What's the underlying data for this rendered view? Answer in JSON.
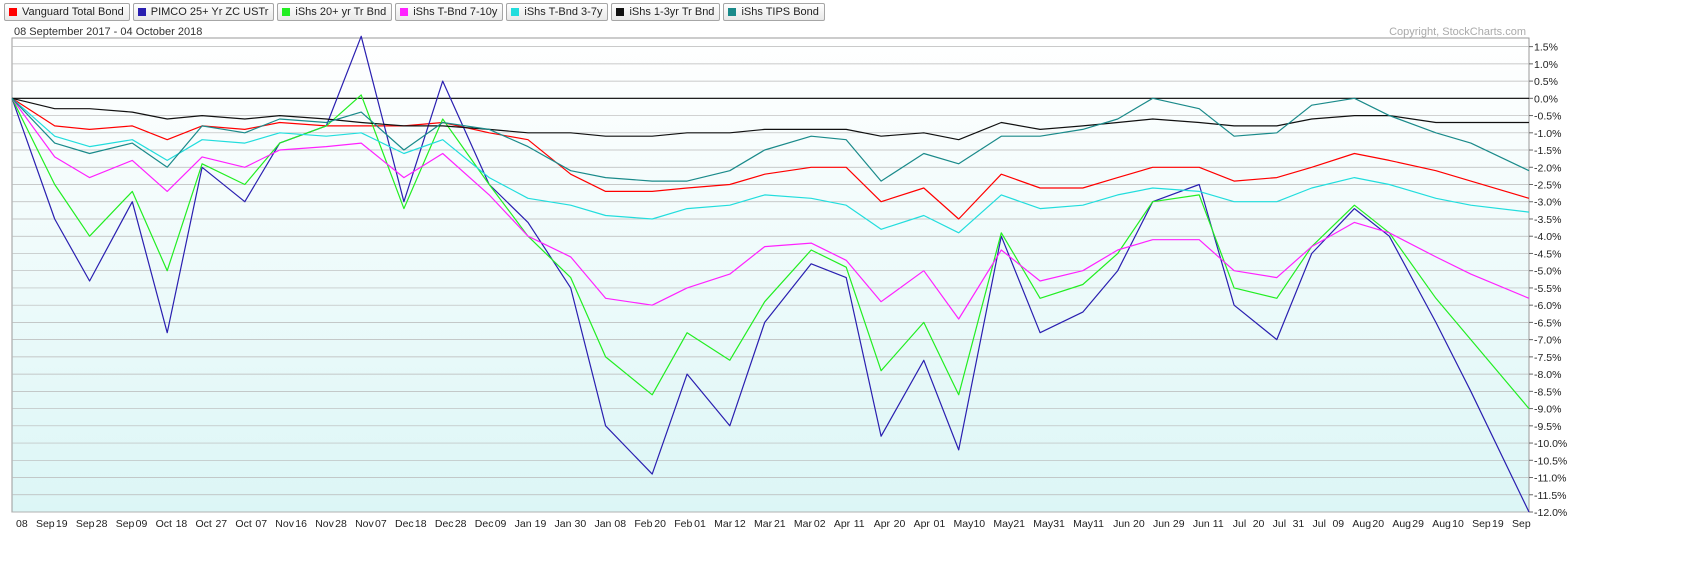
{
  "legend": {
    "items": [
      {
        "label": "Vanguard Total Bond",
        "color": "#ff0000"
      },
      {
        "label": "PIMCO 25+ Yr ZC USTr",
        "color": "#2a1fb0"
      },
      {
        "label": "iShs 20+ yr Tr Bnd",
        "color": "#22ee22"
      },
      {
        "label": "iShs T-Bnd 7-10y",
        "color": "#ff22ff"
      },
      {
        "label": "iShs T-Bnd 3-7y",
        "color": "#22dddd"
      },
      {
        "label": "iShs 1-3yr Tr Bnd",
        "color": "#111111"
      },
      {
        "label": "iShs TIPS Bond",
        "color": "#1a8a8a"
      }
    ]
  },
  "chart_data": {
    "type": "line",
    "date_range_label": "08 September 2017 - 04 October 2018",
    "copyright": "Copyright, StockCharts.com",
    "ylim": [
      -12,
      1.75
    ],
    "y_ticks": [
      1.5,
      1.0,
      0.5,
      0.0,
      -0.5,
      -1.0,
      -1.5,
      -2.0,
      -2.5,
      -3.0,
      -3.5,
      -4.0,
      -4.5,
      -5.0,
      -5.5,
      -6.0,
      -6.5,
      -7.0,
      -7.5,
      -8.0,
      -8.5,
      -9.0,
      -9.5,
      -10.0,
      -10.5,
      -11.0,
      -11.5,
      -12.0
    ],
    "y_tick_labels": [
      "1.5%",
      "1.0%",
      "0.5%",
      "0.0%",
      "-0.5%",
      "-1.0%",
      "-1.5%",
      "-2.0%",
      "-2.5%",
      "-3.0%",
      "-3.5%",
      "-4.0%",
      "-4.5%",
      "-5.0%",
      "-5.5%",
      "-6.0%",
      "-6.5%",
      "-7.0%",
      "-7.5%",
      "-8.0%",
      "-8.5%",
      "-9.0%",
      "-9.5%",
      "-10.0%",
      "-10.5%",
      "-11.0%",
      "-11.5%",
      "-12.0%"
    ],
    "x_tick_labels": [
      "08",
      "Sep",
      "19",
      "Sep",
      "28",
      "Sep",
      "09",
      "Oct",
      "18",
      "Oct",
      "27",
      "Oct",
      "07",
      "Nov",
      "16",
      "Nov",
      "28",
      "Nov",
      "07",
      "Dec",
      "18",
      "Dec",
      "28",
      "Dec",
      "09",
      "Jan",
      "19",
      "Jan",
      "30",
      "Jan",
      "08",
      "Feb",
      "20",
      "Feb",
      "01",
      "Mar",
      "12",
      "Mar",
      "21",
      "Mar",
      "02",
      "Apr",
      "11",
      "Apr",
      "20",
      "Apr",
      "01",
      "May",
      "10",
      "May",
      "21",
      "May",
      "31",
      "May",
      "11",
      "Jun",
      "20",
      "Jun",
      "29",
      "Jun",
      "11",
      "Jul",
      "20",
      "Jul",
      "31",
      "Jul",
      "09",
      "Aug",
      "20",
      "Aug",
      "29",
      "Aug",
      "10",
      "Sep",
      "19",
      "Sep"
    ],
    "x": [
      "2017-09-08",
      "2017-09-19",
      "2017-09-28",
      "2017-10-09",
      "2017-10-18",
      "2017-10-27",
      "2017-11-07",
      "2017-11-16",
      "2017-11-28",
      "2017-12-07",
      "2017-12-18",
      "2017-12-28",
      "2018-01-09",
      "2018-01-19",
      "2018-01-30",
      "2018-02-08",
      "2018-02-20",
      "2018-03-01",
      "2018-03-12",
      "2018-03-21",
      "2018-04-02",
      "2018-04-11",
      "2018-04-20",
      "2018-05-01",
      "2018-05-10",
      "2018-05-21",
      "2018-05-31",
      "2018-06-11",
      "2018-06-20",
      "2018-06-29",
      "2018-07-11",
      "2018-07-20",
      "2018-07-31",
      "2018-08-09",
      "2018-08-20",
      "2018-08-29",
      "2018-09-10",
      "2018-09-19",
      "2018-10-04"
    ],
    "series": [
      {
        "name": "Vanguard Total Bond",
        "color": "#ff0000",
        "values": [
          0.0,
          -0.8,
          -0.9,
          -0.8,
          -1.2,
          -0.8,
          -0.9,
          -0.7,
          -0.8,
          -0.8,
          -0.8,
          -0.7,
          -1.0,
          -1.2,
          -2.2,
          -2.7,
          -2.7,
          -2.6,
          -2.5,
          -2.2,
          -2.0,
          -2.0,
          -3.0,
          -2.6,
          -3.5,
          -2.2,
          -2.6,
          -2.6,
          -2.3,
          -2.0,
          -2.0,
          -2.4,
          -2.3,
          -2.0,
          -1.6,
          -1.8,
          -2.1,
          -2.4,
          -2.9
        ]
      },
      {
        "name": "PIMCO 25+ Yr ZC USTr",
        "color": "#2a1fb0",
        "values": [
          0.0,
          -3.5,
          -5.3,
          -3.0,
          -6.8,
          -2.0,
          -3.0,
          -1.3,
          -0.8,
          1.8,
          -3.0,
          0.5,
          -2.5,
          -3.6,
          -5.5,
          -9.5,
          -10.9,
          -8.0,
          -9.5,
          -6.5,
          -4.8,
          -5.2,
          -9.8,
          -7.6,
          -10.2,
          -4.0,
          -6.8,
          -6.2,
          -5.0,
          -3.0,
          -2.5,
          -6.0,
          -7.0,
          -4.5,
          -3.2,
          -4.0,
          -6.5,
          -8.5,
          -12.0
        ]
      },
      {
        "name": "iShs 20+ yr Tr Bnd",
        "color": "#22ee22",
        "values": [
          0.0,
          -2.5,
          -4.0,
          -2.7,
          -5.0,
          -1.9,
          -2.5,
          -1.3,
          -0.8,
          0.1,
          -3.2,
          -0.6,
          -2.5,
          -4.0,
          -5.2,
          -7.5,
          -8.6,
          -6.8,
          -7.6,
          -5.9,
          -4.4,
          -4.9,
          -7.9,
          -6.5,
          -8.6,
          -3.9,
          -5.8,
          -5.4,
          -4.5,
          -3.0,
          -2.8,
          -5.5,
          -5.8,
          -4.3,
          -3.1,
          -3.9,
          -5.8,
          -7.0,
          -9.0
        ]
      },
      {
        "name": "iShs T-Bnd 7-10y",
        "color": "#ff22ff",
        "values": [
          0.0,
          -1.7,
          -2.3,
          -1.8,
          -2.7,
          -1.7,
          -2.0,
          -1.5,
          -1.4,
          -1.3,
          -2.3,
          -1.6,
          -2.8,
          -4.0,
          -4.6,
          -5.8,
          -6.0,
          -5.5,
          -5.1,
          -4.3,
          -4.2,
          -4.7,
          -5.9,
          -5.0,
          -6.4,
          -4.4,
          -5.3,
          -5.0,
          -4.4,
          -4.1,
          -4.1,
          -5.0,
          -5.2,
          -4.3,
          -3.6,
          -3.9,
          -4.6,
          -5.1,
          -5.8
        ]
      },
      {
        "name": "iShs T-Bnd 3-7y",
        "color": "#22dddd",
        "values": [
          0.0,
          -1.1,
          -1.4,
          -1.2,
          -1.8,
          -1.2,
          -1.3,
          -1.0,
          -1.1,
          -1.0,
          -1.6,
          -1.2,
          -2.3,
          -2.9,
          -3.1,
          -3.4,
          -3.5,
          -3.2,
          -3.1,
          -2.8,
          -2.9,
          -3.1,
          -3.8,
          -3.4,
          -3.9,
          -2.8,
          -3.2,
          -3.1,
          -2.8,
          -2.6,
          -2.7,
          -3.0,
          -3.0,
          -2.6,
          -2.3,
          -2.5,
          -2.9,
          -3.1,
          -3.3
        ]
      },
      {
        "name": "iShs 1-3yr Tr Bnd",
        "color": "#111111",
        "values": [
          0.0,
          -0.3,
          -0.3,
          -0.4,
          -0.6,
          -0.5,
          -0.6,
          -0.5,
          -0.6,
          -0.7,
          -0.8,
          -0.8,
          -0.9,
          -1.0,
          -1.0,
          -1.1,
          -1.1,
          -1.0,
          -1.0,
          -0.9,
          -0.9,
          -0.9,
          -1.1,
          -1.0,
          -1.2,
          -0.7,
          -0.9,
          -0.8,
          -0.7,
          -0.6,
          -0.7,
          -0.8,
          -0.8,
          -0.6,
          -0.5,
          -0.5,
          -0.7,
          -0.7,
          -0.7
        ]
      },
      {
        "name": "iShs TIPS Bond",
        "color": "#1a8a8a",
        "values": [
          0.0,
          -1.3,
          -1.6,
          -1.3,
          -2.0,
          -0.8,
          -1.0,
          -0.6,
          -0.7,
          -0.4,
          -1.5,
          -0.7,
          -0.9,
          -1.4,
          -2.1,
          -2.3,
          -2.4,
          -2.4,
          -2.1,
          -1.5,
          -1.1,
          -1.2,
          -2.4,
          -1.6,
          -1.9,
          -1.1,
          -1.1,
          -0.9,
          -0.6,
          0.0,
          -0.3,
          -1.1,
          -1.0,
          -0.2,
          0.0,
          -0.5,
          -1.0,
          -1.3,
          -2.1
        ]
      }
    ]
  }
}
